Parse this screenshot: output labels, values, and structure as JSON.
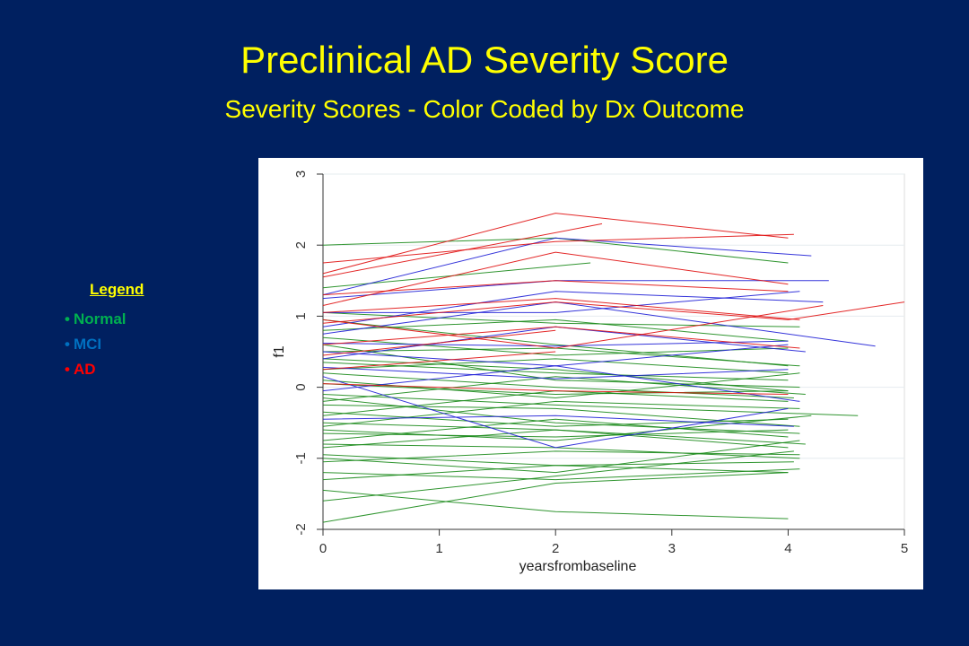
{
  "slide": {
    "title": "Preclinical AD Severity Score",
    "subtitle": "Severity Scores - Color Coded by Dx Outcome"
  },
  "legend": {
    "title": "Legend",
    "items": [
      {
        "label": "Normal",
        "color": "#00B050"
      },
      {
        "label": "MCI",
        "color": "#0070C0"
      },
      {
        "label": "AD",
        "color": "#FF0000"
      }
    ]
  },
  "chart_data": {
    "type": "line",
    "xlabel": "yearsfrombaseline",
    "ylabel": "f1",
    "xlim": [
      0,
      5
    ],
    "ylim": [
      -2,
      3
    ],
    "xticks": [
      0,
      1,
      2,
      3,
      4,
      5
    ],
    "yticks": [
      -2,
      -1,
      0,
      1,
      2,
      3
    ],
    "grid": "horizontal",
    "series_colors": {
      "Normal": "#1a8a1a",
      "MCI": "#1f1fd6",
      "AD": "#e01010"
    },
    "series": [
      {
        "group": "AD",
        "x": [
          0,
          2,
          4
        ],
        "y": [
          1.6,
          2.45,
          2.1
        ]
      },
      {
        "group": "AD",
        "x": [
          0,
          2,
          4.05
        ],
        "y": [
          1.75,
          2.05,
          2.15
        ]
      },
      {
        "group": "AD",
        "x": [
          0,
          2.4
        ],
        "y": [
          1.55,
          2.3
        ]
      },
      {
        "group": "AD",
        "x": [
          0,
          2,
          4
        ],
        "y": [
          1.15,
          1.9,
          1.45
        ]
      },
      {
        "group": "AD",
        "x": [
          0,
          2,
          4.1
        ],
        "y": [
          1.05,
          1.25,
          0.95
        ]
      },
      {
        "group": "AD",
        "x": [
          0,
          2,
          4,
          5
        ],
        "y": [
          0.9,
          1.2,
          0.95,
          1.2
        ]
      },
      {
        "group": "AD",
        "x": [
          0,
          2,
          4.1
        ],
        "y": [
          0.6,
          0.85,
          0.55
        ]
      },
      {
        "group": "AD",
        "x": [
          0,
          2,
          4
        ],
        "y": [
          1.3,
          1.5,
          1.35
        ]
      },
      {
        "group": "AD",
        "x": [
          0,
          2,
          4.3
        ],
        "y": [
          0.95,
          0.55,
          1.15
        ]
      },
      {
        "group": "AD",
        "x": [
          0,
          2
        ],
        "y": [
          0.25,
          0.5
        ]
      },
      {
        "group": "AD",
        "x": [
          0,
          2,
          4
        ],
        "y": [
          0.05,
          -0.05,
          -0.1
        ]
      },
      {
        "group": "AD",
        "x": [
          0,
          2
        ],
        "y": [
          0.45,
          0.8
        ]
      },
      {
        "group": "MCI",
        "x": [
          0,
          2,
          4.2
        ],
        "y": [
          1.3,
          2.1,
          1.85
        ]
      },
      {
        "group": "MCI",
        "x": [
          0,
          2,
          4.35
        ],
        "y": [
          1.25,
          1.5,
          1.5
        ]
      },
      {
        "group": "MCI",
        "x": [
          0,
          2,
          4.1
        ],
        "y": [
          1.05,
          1.05,
          1.35
        ]
      },
      {
        "group": "MCI",
        "x": [
          0,
          2,
          4.75
        ],
        "y": [
          0.75,
          1.2,
          0.58
        ]
      },
      {
        "group": "MCI",
        "x": [
          0,
          2,
          4
        ],
        "y": [
          0.62,
          0.58,
          0.65
        ]
      },
      {
        "group": "MCI",
        "x": [
          0,
          2,
          4.15
        ],
        "y": [
          0.4,
          0.85,
          0.5
        ]
      },
      {
        "group": "MCI",
        "x": [
          0,
          2,
          4
        ],
        "y": [
          0.28,
          0.12,
          0.25
        ]
      },
      {
        "group": "MCI",
        "x": [
          0,
          2,
          4.1
        ],
        "y": [
          -0.05,
          0.3,
          -0.2
        ]
      },
      {
        "group": "MCI",
        "x": [
          0,
          2,
          4
        ],
        "y": [
          0.15,
          -0.85,
          -0.3
        ]
      },
      {
        "group": "MCI",
        "x": [
          0,
          2,
          4.05
        ],
        "y": [
          -0.45,
          -0.4,
          -0.55
        ]
      },
      {
        "group": "MCI",
        "x": [
          0,
          2,
          4.3
        ],
        "y": [
          0.85,
          1.35,
          1.2
        ]
      },
      {
        "group": "MCI",
        "x": [
          0,
          2,
          4
        ],
        "y": [
          0.5,
          0.3,
          0.6
        ]
      },
      {
        "group": "Normal",
        "x": [
          0,
          2,
          4
        ],
        "y": [
          2.0,
          2.1,
          1.75
        ]
      },
      {
        "group": "Normal",
        "x": [
          0,
          2.3
        ],
        "y": [
          1.4,
          1.75
        ]
      },
      {
        "group": "Normal",
        "x": [
          0,
          2,
          4.1
        ],
        "y": [
          1.05,
          0.9,
          0.85
        ]
      },
      {
        "group": "Normal",
        "x": [
          0,
          2,
          4
        ],
        "y": [
          0.8,
          0.95,
          0.65
        ]
      },
      {
        "group": "Normal",
        "x": [
          0,
          2,
          4.1
        ],
        "y": [
          0.5,
          0.55,
          0.3
        ]
      },
      {
        "group": "Normal",
        "x": [
          0,
          2,
          4
        ],
        "y": [
          0.35,
          0.2,
          0.1
        ]
      },
      {
        "group": "Normal",
        "x": [
          0,
          2,
          4.05
        ],
        "y": [
          0.2,
          0.0,
          -0.15
        ]
      },
      {
        "group": "Normal",
        "x": [
          0,
          2,
          4
        ],
        "y": [
          0.05,
          -0.1,
          -0.05
        ]
      },
      {
        "group": "Normal",
        "x": [
          0,
          2,
          4.6
        ],
        "y": [
          -0.1,
          -0.25,
          -0.4
        ]
      },
      {
        "group": "Normal",
        "x": [
          0,
          2,
          4.1
        ],
        "y": [
          -0.25,
          -0.3,
          -0.55
        ]
      },
      {
        "group": "Normal",
        "x": [
          0,
          2,
          4
        ],
        "y": [
          -0.35,
          -0.55,
          -0.45
        ]
      },
      {
        "group": "Normal",
        "x": [
          0,
          2,
          4.15
        ],
        "y": [
          -0.5,
          -0.6,
          -0.8
        ]
      },
      {
        "group": "Normal",
        "x": [
          0,
          2,
          4
        ],
        "y": [
          -0.65,
          -0.7,
          -0.6
        ]
      },
      {
        "group": "Normal",
        "x": [
          0,
          2,
          4.1
        ],
        "y": [
          -0.8,
          -0.85,
          -1.0
        ]
      },
      {
        "group": "Normal",
        "x": [
          0,
          2,
          4
        ],
        "y": [
          -0.95,
          -1.1,
          -1.2
        ]
      },
      {
        "group": "Normal",
        "x": [
          0,
          2,
          4.1
        ],
        "y": [
          -1.2,
          -1.3,
          -1.15
        ]
      },
      {
        "group": "Normal",
        "x": [
          0,
          2,
          4
        ],
        "y": [
          -1.45,
          -1.75,
          -1.85
        ]
      },
      {
        "group": "Normal",
        "x": [
          0,
          2,
          4
        ],
        "y": [
          -1.9,
          -1.35,
          -1.2
        ]
      },
      {
        "group": "Normal",
        "x": [
          0,
          2,
          4.05
        ],
        "y": [
          -1.6,
          -1.25,
          -0.9
        ]
      },
      {
        "group": "Normal",
        "x": [
          0,
          2,
          4
        ],
        "y": [
          0.95,
          0.6,
          0.3
        ]
      },
      {
        "group": "Normal",
        "x": [
          0,
          2,
          4.1
        ],
        "y": [
          0.6,
          0.1,
          0.0
        ]
      },
      {
        "group": "Normal",
        "x": [
          0,
          2,
          4
        ],
        "y": [
          0.25,
          0.4,
          0.2
        ]
      },
      {
        "group": "Normal",
        "x": [
          0,
          2,
          4.15
        ],
        "y": [
          -0.2,
          0.15,
          -0.1
        ]
      },
      {
        "group": "Normal",
        "x": [
          0,
          2,
          4.1
        ],
        "y": [
          -0.55,
          -0.2,
          -0.3
        ]
      },
      {
        "group": "Normal",
        "x": [
          0,
          2,
          4
        ],
        "y": [
          -0.75,
          -0.45,
          -0.7
        ]
      },
      {
        "group": "Normal",
        "x": [
          0,
          2,
          4.1
        ],
        "y": [
          -1.05,
          -0.9,
          -0.95
        ]
      },
      {
        "group": "Normal",
        "x": [
          0,
          2,
          4.05
        ],
        "y": [
          -1.3,
          -1.1,
          -1.05
        ]
      },
      {
        "group": "Normal",
        "x": [
          0,
          2,
          4
        ],
        "y": [
          0.7,
          0.45,
          0.55
        ]
      },
      {
        "group": "Normal",
        "x": [
          0,
          2,
          4.1
        ],
        "y": [
          0.1,
          -0.15,
          0.2
        ]
      },
      {
        "group": "Normal",
        "x": [
          0,
          2,
          4
        ],
        "y": [
          -0.4,
          -0.05,
          -0.2
        ]
      },
      {
        "group": "Normal",
        "x": [
          0,
          2,
          4.1
        ],
        "y": [
          -0.15,
          -0.5,
          -0.65
        ]
      },
      {
        "group": "Normal",
        "x": [
          0,
          2,
          4
        ],
        "y": [
          0.4,
          0.25,
          -0.05
        ]
      },
      {
        "group": "Normal",
        "x": [
          0,
          2,
          4.2
        ],
        "y": [
          -0.6,
          -0.75,
          -0.4
        ]
      },
      {
        "group": "Normal",
        "x": [
          0,
          2,
          4
        ],
        "y": [
          -0.85,
          -0.6,
          -0.85
        ]
      },
      {
        "group": "Normal",
        "x": [
          0,
          2,
          4.1
        ],
        "y": [
          -1.0,
          -1.2,
          -0.75
        ]
      }
    ]
  }
}
